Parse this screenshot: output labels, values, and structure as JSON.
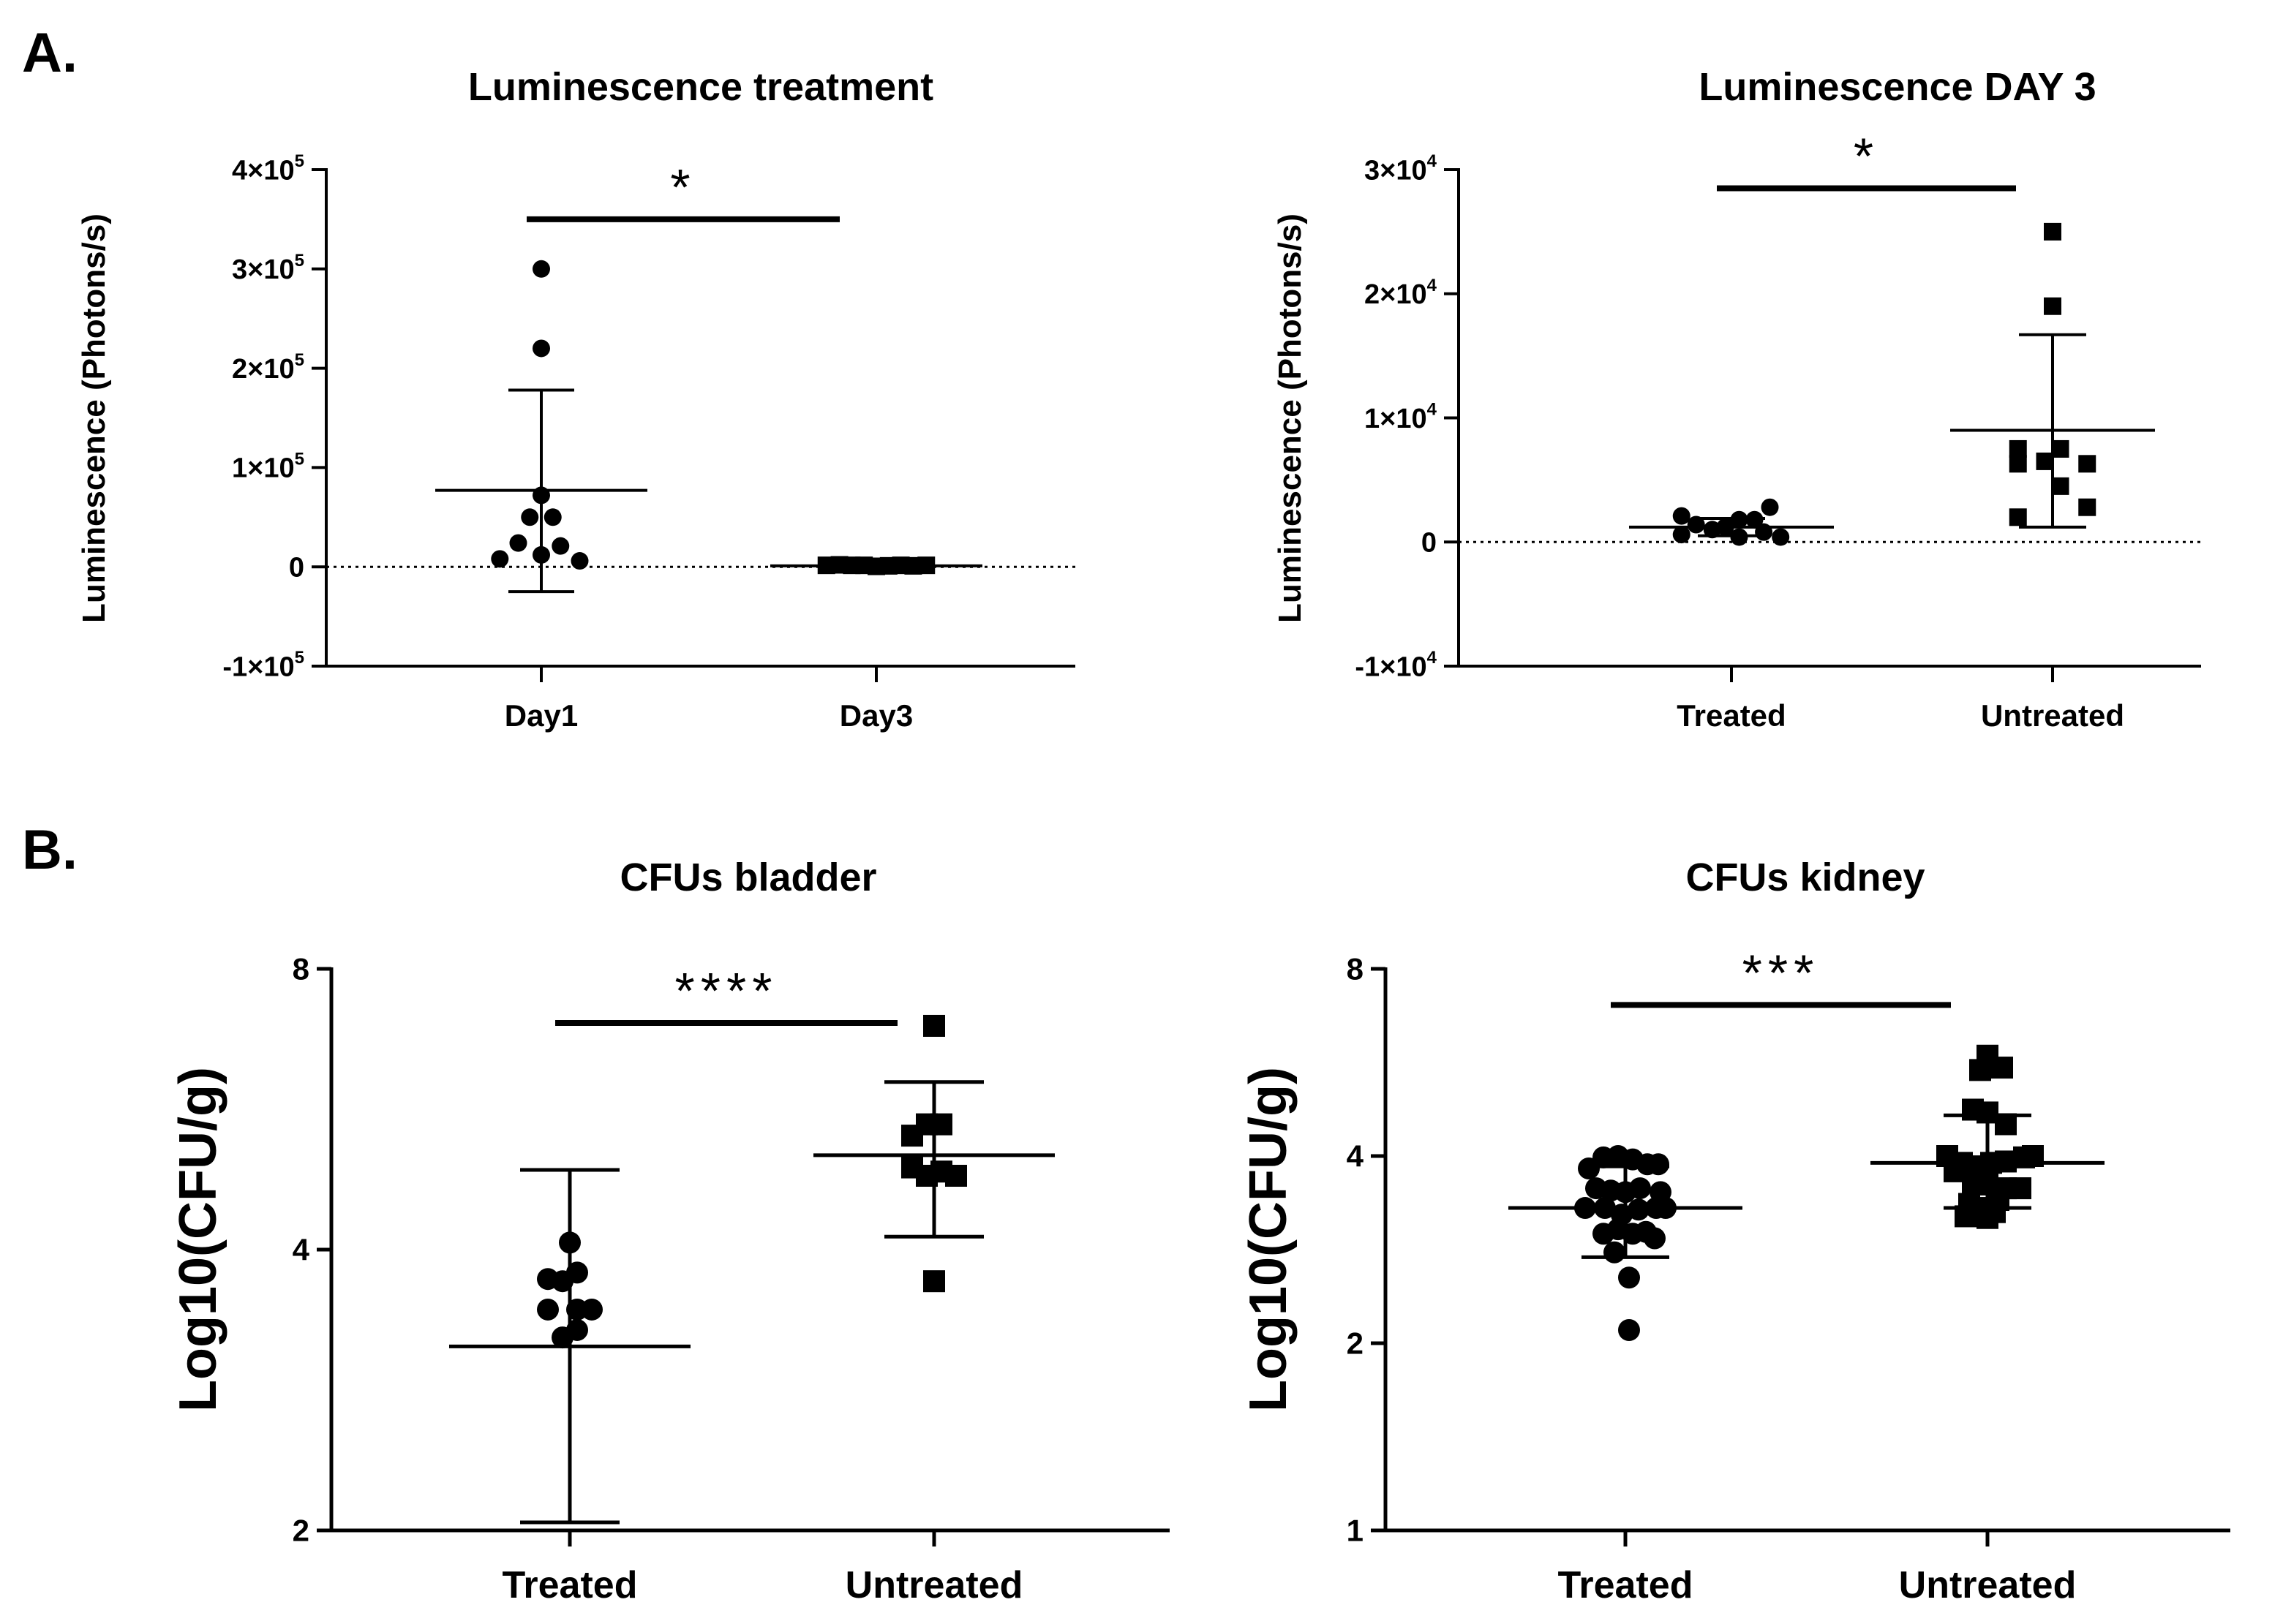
{
  "panel_labels": {
    "a": "A.",
    "b": "B."
  },
  "chart_data": [
    {
      "id": "lum-treatment",
      "type": "scatter",
      "title": "Luminescence treatment",
      "xlabel": "",
      "ylabel": "Luminescence (Photons/s)",
      "ylim": [
        -100000,
        400000
      ],
      "yticks": [
        -100000,
        0,
        100000,
        200000,
        300000,
        400000
      ],
      "ytick_labels": [
        {
          "base": "-1×10",
          "exp": "5"
        },
        {
          "base": "0",
          "exp": ""
        },
        {
          "base": "1×10",
          "exp": "5"
        },
        {
          "base": "2×10",
          "exp": "5"
        },
        {
          "base": "3×10",
          "exp": "5"
        },
        {
          "base": "4×10",
          "exp": "5"
        }
      ],
      "categories": [
        "Day1",
        "Day3"
      ],
      "zero_line": true,
      "groups": [
        {
          "name": "Day1",
          "marker": "circle",
          "mean": 77000,
          "err_low": -25000,
          "err_high": 178000,
          "points": [
            [
              -0.54,
              8000
            ],
            [
              -0.3,
              24000
            ],
            [
              0,
              72000
            ],
            [
              -0.15,
              50000
            ],
            [
              0,
              12000
            ],
            [
              0.15,
              50000
            ],
            [
              0.25,
              21000
            ],
            [
              0.5,
              6000
            ],
            [
              0,
              220000
            ],
            [
              0,
              300000
            ]
          ]
        },
        {
          "name": "Day3",
          "marker": "square",
          "mean": 1000,
          "err_low": 0,
          "err_high": 2000,
          "points": [
            [
              -0.65,
              1500
            ],
            [
              -0.48,
              2000
            ],
            [
              -0.32,
              1500
            ],
            [
              -0.16,
              1500
            ],
            [
              0,
              500
            ],
            [
              0.16,
              1000
            ],
            [
              0.32,
              1500
            ],
            [
              0.48,
              1000
            ],
            [
              0.65,
              1500
            ]
          ]
        }
      ],
      "significance": {
        "label": "*",
        "from": "Day1",
        "to": "Day3",
        "y": 350000
      }
    },
    {
      "id": "lum-day3",
      "type": "scatter",
      "title": "Luminescence DAY 3",
      "xlabel": "",
      "ylabel": "Luminescence (Photons/s)",
      "ylim": [
        -10000,
        30000
      ],
      "yticks": [
        -10000,
        0,
        10000,
        20000,
        30000
      ],
      "ytick_labels": [
        {
          "base": "-1×10",
          "exp": "4"
        },
        {
          "base": "0",
          "exp": ""
        },
        {
          "base": "1×10",
          "exp": "4"
        },
        {
          "base": "2×10",
          "exp": "4"
        },
        {
          "base": "3×10",
          "exp": "4"
        }
      ],
      "categories": [
        "Treated",
        "Untreated"
      ],
      "zero_line": true,
      "groups": [
        {
          "name": "Treated",
          "marker": "circle",
          "mean": 1200,
          "err_low": 500,
          "err_high": 1900,
          "points": [
            [
              -0.65,
              2100
            ],
            [
              -0.65,
              600
            ],
            [
              -0.46,
              1400
            ],
            [
              -0.25,
              1000
            ],
            [
              -0.08,
              1200
            ],
            [
              0.1,
              400
            ],
            [
              0.1,
              1800
            ],
            [
              0.3,
              1800
            ],
            [
              0.42,
              800
            ],
            [
              0.5,
              2800
            ],
            [
              0.64,
              400
            ]
          ]
        },
        {
          "name": "Untreated",
          "marker": "square",
          "mean": 9000,
          "err_low": 1200,
          "err_high": 16700,
          "points": [
            [
              0,
              25000
            ],
            [
              0,
              19000
            ],
            [
              -0.45,
              7500
            ],
            [
              0.1,
              7500
            ],
            [
              -0.1,
              6500
            ],
            [
              -0.45,
              6300
            ],
            [
              0.45,
              6300
            ],
            [
              0.1,
              4500
            ],
            [
              -0.45,
              2000
            ],
            [
              0.45,
              2800
            ]
          ]
        }
      ],
      "significance": {
        "label": "*",
        "from": "Treated",
        "to": "Untreated",
        "y": 28500
      }
    },
    {
      "id": "cfu-bladder",
      "type": "scatter",
      "title": "CFUs bladder",
      "xlabel": "",
      "ylabel": "Log10(CFU/g)",
      "scale": "log2",
      "ylim": [
        2,
        8
      ],
      "yticks": [
        2,
        4,
        8
      ],
      "ytick_labels": [
        {
          "base": "2",
          "exp": ""
        },
        {
          "base": "4",
          "exp": ""
        },
        {
          "base": "8",
          "exp": ""
        }
      ],
      "categories": [
        "Treated",
        "Untreated"
      ],
      "zero_line": false,
      "groups": [
        {
          "name": "Treated",
          "marker": "circle",
          "mean": 3.15,
          "err_low": 2.04,
          "err_high": 4.87,
          "points": [
            [
              -0.3,
              3.72
            ],
            [
              -0.3,
              3.45
            ],
            [
              -0.1,
              3.7
            ],
            [
              0.1,
              3.78
            ],
            [
              0.1,
              3.45
            ],
            [
              0,
              4.07
            ],
            [
              -0.1,
              3.22
            ],
            [
              0.1,
              3.28
            ],
            [
              0.3,
              3.45
            ]
          ]
        },
        {
          "name": "Untreated",
          "marker": "square",
          "mean": 5.05,
          "err_low": 4.13,
          "err_high": 6.05,
          "points": [
            [
              0,
              6.95
            ],
            [
              -0.3,
              5.3
            ],
            [
              -0.1,
              5.45
            ],
            [
              0.1,
              5.45
            ],
            [
              -0.3,
              4.9
            ],
            [
              -0.1,
              4.8
            ],
            [
              0.1,
              4.85
            ],
            [
              0.3,
              4.8
            ],
            [
              0,
              3.7
            ]
          ]
        }
      ],
      "significance": {
        "label": "****",
        "from": "Treated",
        "to": "Untreated",
        "y": 7.0
      }
    },
    {
      "id": "cfu-kidney",
      "type": "scatter",
      "title": "CFUs kidney",
      "xlabel": "",
      "ylabel": "Log10(CFU/g)",
      "scale": "log2",
      "ylim": [
        1,
        8
      ],
      "yticks": [
        1,
        2,
        4,
        8
      ],
      "ytick_labels": [
        {
          "base": "1",
          "exp": ""
        },
        {
          "base": "2",
          "exp": ""
        },
        {
          "base": "4",
          "exp": ""
        },
        {
          "base": "8",
          "exp": ""
        }
      ],
      "categories": [
        "Treated",
        "Untreated"
      ],
      "zero_line": false,
      "groups": [
        {
          "name": "Treated",
          "marker": "circle",
          "mean": 3.3,
          "err_low": 2.75,
          "err_high": 3.85,
          "points": [
            [
              -0.5,
              3.82
            ],
            [
              -0.3,
              3.98
            ],
            [
              -0.1,
              4.0
            ],
            [
              0.1,
              3.95
            ],
            [
              0.3,
              3.88
            ],
            [
              0.45,
              3.88
            ],
            [
              -0.4,
              3.55
            ],
            [
              -0.2,
              3.52
            ],
            [
              0,
              3.5
            ],
            [
              0.2,
              3.55
            ],
            [
              0.48,
              3.5
            ],
            [
              -0.55,
              3.3
            ],
            [
              -0.28,
              3.3
            ],
            [
              -0.05,
              3.22
            ],
            [
              0.18,
              3.28
            ],
            [
              0.42,
              3.3
            ],
            [
              0.55,
              3.3
            ],
            [
              -0.3,
              3.0
            ],
            [
              -0.1,
              3.05
            ],
            [
              0.1,
              3.0
            ],
            [
              0.28,
              3.02
            ],
            [
              0.4,
              2.95
            ],
            [
              -0.15,
              2.8
            ],
            [
              0.05,
              2.55
            ],
            [
              0.05,
              2.1
            ]
          ]
        },
        {
          "name": "Untreated",
          "marker": "square",
          "mean": 3.9,
          "err_low": 3.3,
          "err_high": 4.65,
          "points": [
            [
              0,
              5.8
            ],
            [
              -0.1,
              5.5
            ],
            [
              0.2,
              5.55
            ],
            [
              -0.2,
              4.75
            ],
            [
              0,
              4.7
            ],
            [
              0.25,
              4.5
            ],
            [
              -0.55,
              4.0
            ],
            [
              -0.35,
              3.9
            ],
            [
              -0.15,
              3.85
            ],
            [
              0.05,
              3.9
            ],
            [
              0.25,
              3.92
            ],
            [
              0.5,
              3.98
            ],
            [
              0.62,
              4.0
            ],
            [
              -0.45,
              3.78
            ],
            [
              -0.2,
              3.62
            ],
            [
              0,
              3.6
            ],
            [
              0.25,
              3.55
            ],
            [
              0.45,
              3.55
            ],
            [
              -0.25,
              3.35
            ],
            [
              -0.05,
              3.3
            ],
            [
              0.15,
              3.4
            ],
            [
              -0.3,
              3.2
            ],
            [
              0,
              3.18
            ],
            [
              0.1,
              3.25
            ]
          ]
        }
      ],
      "significance": {
        "label": "***",
        "from": "Treated",
        "to": "Untreated",
        "y": 7.0
      }
    }
  ]
}
